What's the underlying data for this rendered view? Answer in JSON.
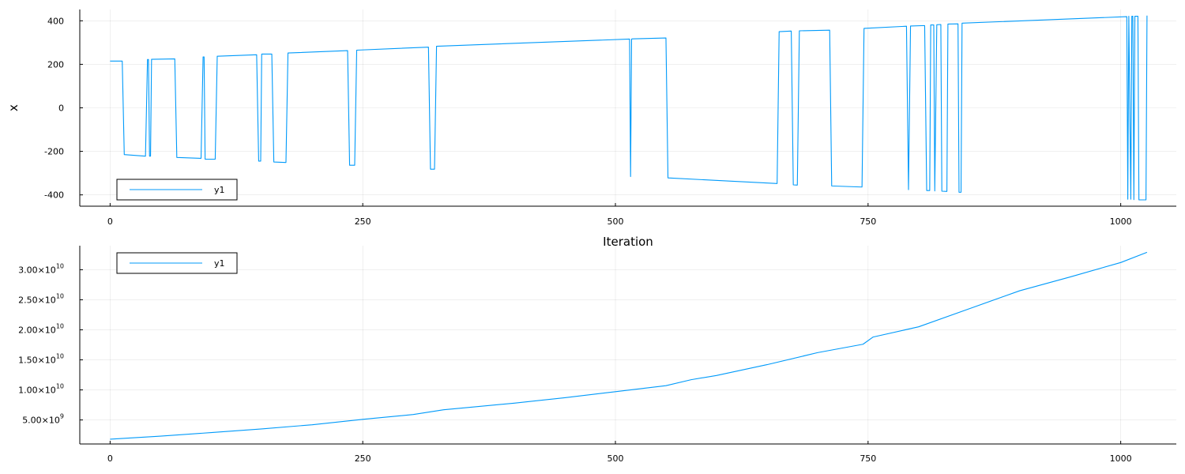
{
  "chart_data": [
    {
      "type": "line",
      "ylabel": "x",
      "xlabel": "Iteration",
      "xticks": [
        0,
        250,
        500,
        750,
        1000
      ],
      "xlim": [
        -30,
        1055
      ],
      "yticks": [
        {
          "value": 400,
          "label": "400"
        },
        {
          "value": 200,
          "label": "200"
        },
        {
          "value": 0,
          "label": "0"
        },
        {
          "value": -200,
          "label": "-200"
        },
        {
          "value": -400,
          "label": "-400"
        }
      ],
      "ylim": [
        -452,
        452
      ],
      "grid": true,
      "legend": {
        "position": "bottom-left",
        "entries": [
          "y1"
        ]
      },
      "color": "#009AFA",
      "series": [
        {
          "name": "y1",
          "points": [
            [
              0,
              215
            ],
            [
              12,
              215
            ],
            [
              14,
              -215
            ],
            [
              35,
              -222
            ],
            [
              37,
              222
            ],
            [
              38,
              222
            ],
            [
              39,
              -222
            ],
            [
              40,
              -222
            ],
            [
              41,
              223
            ],
            [
              64,
              225
            ],
            [
              66,
              -228
            ],
            [
              90,
              -232
            ],
            [
              92,
              234
            ],
            [
              93,
              234
            ],
            [
              94,
              -236
            ],
            [
              104,
              -236
            ],
            [
              106,
              237
            ],
            [
              145,
              244
            ],
            [
              147,
              -245
            ],
            [
              149,
              -245
            ],
            [
              150,
              247
            ],
            [
              160,
              247
            ],
            [
              162,
              -249
            ],
            [
              174,
              -251
            ],
            [
              176,
              252
            ],
            [
              235,
              263
            ],
            [
              237,
              -264
            ],
            [
              242,
              -264
            ],
            [
              244,
              265
            ],
            [
              315,
              279
            ],
            [
              317,
              -282
            ],
            [
              321,
              -282
            ],
            [
              323,
              283
            ],
            [
              514,
              316
            ],
            [
              515,
              -316
            ],
            [
              516,
              316
            ],
            [
              517,
              317
            ],
            [
              550,
              321
            ],
            [
              552,
              -322
            ],
            [
              660,
              -348
            ],
            [
              662,
              350
            ],
            [
              674,
              353
            ],
            [
              676,
              -354
            ],
            [
              680,
              -355
            ],
            [
              682,
              354
            ],
            [
              712,
              357
            ],
            [
              714,
              -359
            ],
            [
              744,
              -364
            ],
            [
              746,
              365
            ],
            [
              788,
              375
            ],
            [
              790,
              -376
            ],
            [
              792,
              376
            ],
            [
              806,
              378
            ],
            [
              808,
              -380
            ],
            [
              811,
              -380
            ],
            [
              812,
              381
            ],
            [
              815,
              381
            ],
            [
              816,
              -382
            ],
            [
              818,
              382
            ],
            [
              822,
              383
            ],
            [
              823,
              -383
            ],
            [
              828,
              -384
            ],
            [
              829,
              385
            ],
            [
              839,
              386
            ],
            [
              840,
              -388
            ],
            [
              842,
              -388
            ],
            [
              843,
              389
            ],
            [
              1006,
              419
            ],
            [
              1007,
              -420
            ],
            [
              1008,
              421
            ],
            [
              1010,
              -420
            ],
            [
              1011,
              421
            ],
            [
              1012,
              421
            ],
            [
              1013,
              -422
            ],
            [
              1014,
              421
            ],
            [
              1017,
              421
            ],
            [
              1018,
              -423
            ],
            [
              1025,
              -423
            ],
            [
              1026,
              424
            ]
          ]
        }
      ]
    },
    {
      "type": "line",
      "xlabel": "",
      "xticks": [
        0,
        250,
        500,
        750,
        1000
      ],
      "xlim": [
        -30,
        1055
      ],
      "yticks": [
        {
          "value": 30000000000,
          "base": "3.00×10",
          "exp": "10"
        },
        {
          "value": 25000000000,
          "base": "2.50×10",
          "exp": "10"
        },
        {
          "value": 20000000000,
          "base": "2.00×10",
          "exp": "10"
        },
        {
          "value": 15000000000,
          "base": "1.50×10",
          "exp": "10"
        },
        {
          "value": 10000000000,
          "base": "1.00×10",
          "exp": "10"
        },
        {
          "value": 5000000000,
          "base": "5.00×10",
          "exp": "9"
        }
      ],
      "ylim": [
        1000000000,
        34000000000
      ],
      "grid": true,
      "legend": {
        "position": "top-left",
        "entries": [
          "y1"
        ]
      },
      "color": "#009AFA",
      "series": [
        {
          "name": "y1",
          "points": [
            [
              0,
              1800000000
            ],
            [
              50,
              2300000000
            ],
            [
              100,
              2900000000
            ],
            [
              150,
              3500000000
            ],
            [
              200,
              4200000000
            ],
            [
              250,
              5100000000
            ],
            [
              300,
              5900000000
            ],
            [
              330,
              6700000000
            ],
            [
              350,
              7000000000
            ],
            [
              400,
              7800000000
            ],
            [
              450,
              8700000000
            ],
            [
              500,
              9700000000
            ],
            [
              550,
              10700000000
            ],
            [
              575,
              11700000000
            ],
            [
              600,
              12400000000
            ],
            [
              650,
              14200000000
            ],
            [
              700,
              16200000000
            ],
            [
              745,
              17600000000
            ],
            [
              755,
              18800000000
            ],
            [
              800,
              20500000000
            ],
            [
              850,
              23500000000
            ],
            [
              900,
              26500000000
            ],
            [
              950,
              28800000000
            ],
            [
              1000,
              31200000000
            ],
            [
              1026,
              32900000000
            ]
          ]
        }
      ]
    }
  ]
}
